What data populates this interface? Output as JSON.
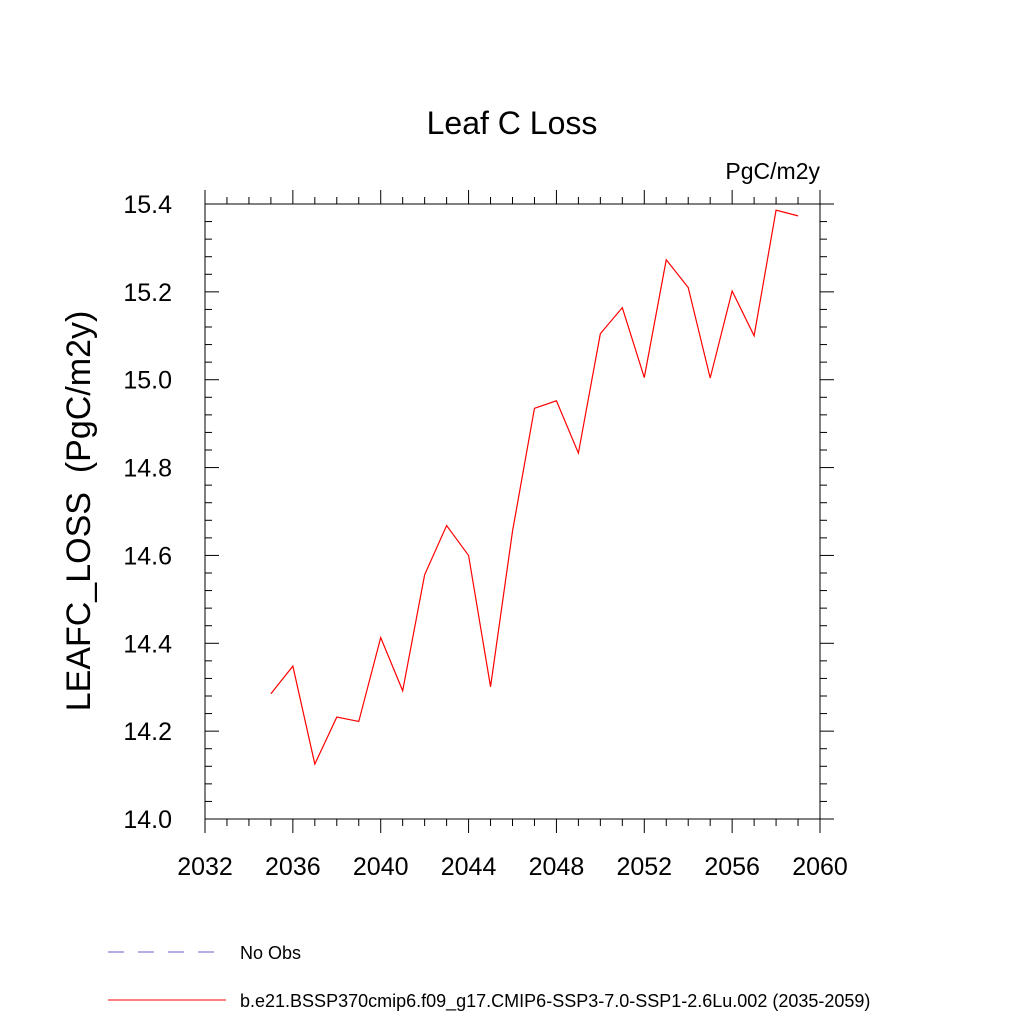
{
  "chart_data": {
    "type": "line",
    "title": "Leaf C Loss",
    "units": "PgC/m2y",
    "ylabel": "LEAFC_LOSS  (PgC/m2y)",
    "xlabel": "",
    "xlim": [
      2032,
      2060
    ],
    "ylim": [
      14.0,
      15.4
    ],
    "x_ticks": [
      2032,
      2036,
      2040,
      2044,
      2048,
      2052,
      2056,
      2060
    ],
    "y_ticks": [
      "14.0",
      "14.2",
      "14.4",
      "14.6",
      "14.8",
      "15.0",
      "15.2",
      "15.4"
    ],
    "grid": false,
    "legend_position": "bottom-left",
    "series": [
      {
        "name": "b.e21.BSSP370cmip6.f09_g17.CMIP6-SSP3-7.0-SSP1-2.6Lu.002 (2035-2059)",
        "color": "#ff0000",
        "style": "solid",
        "x": [
          2035,
          2036,
          2037,
          2038,
          2039,
          2040,
          2041,
          2042,
          2043,
          2044,
          2045,
          2046,
          2047,
          2048,
          2049,
          2050,
          2051,
          2052,
          2053,
          2054,
          2055,
          2056,
          2057,
          2058,
          2059
        ],
        "values": [
          14.285,
          14.348,
          14.125,
          14.232,
          14.222,
          14.413,
          14.292,
          14.556,
          14.668,
          14.6,
          14.301,
          14.655,
          14.935,
          14.952,
          14.833,
          15.105,
          15.164,
          15.005,
          15.273,
          15.21,
          15.004,
          15.202,
          15.1,
          15.386,
          15.373
        ]
      }
    ],
    "legend": [
      {
        "label": "No Obs",
        "color": "#6a5acd",
        "style": "dashed"
      },
      {
        "label": "b.e21.BSSP370cmip6.f09_g17.CMIP6-SSP3-7.0-SSP1-2.6Lu.002 (2035-2059)",
        "color": "#ff0000",
        "style": "solid"
      }
    ]
  }
}
